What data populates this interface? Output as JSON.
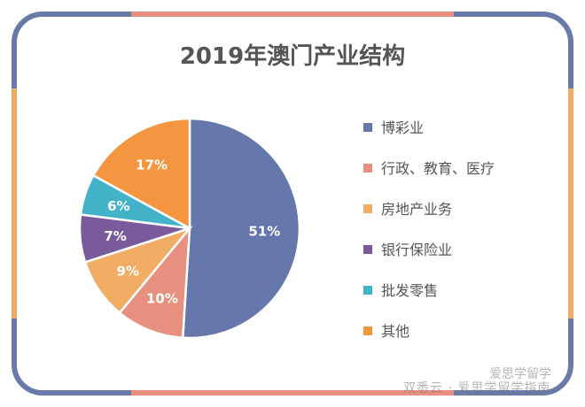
{
  "chart_data": {
    "type": "pie",
    "title": "2019年澳门产业结构",
    "categories": [
      "博彩业",
      "行政、教育、医疗",
      "房地产业务",
      "银行保险业",
      "批发零售",
      "其他"
    ],
    "values": [
      51,
      10,
      9,
      7,
      6,
      17
    ],
    "labels": [
      "51%",
      "10%",
      "9%",
      "7%",
      "6%",
      "17%"
    ],
    "colors": [
      "#6678ab",
      "#e8907f",
      "#f2ad64",
      "#7a5a9a",
      "#43b3c9",
      "#f3963f"
    ],
    "legend": "right"
  },
  "watermark": {
    "line1": "爱思学留学",
    "line2": "双悉云 · 爱思学留学指南"
  },
  "frame": {
    "colors": {
      "blue": "#6a7aa8",
      "salmon": "#e8907f",
      "orange": "#f2ad64"
    }
  }
}
